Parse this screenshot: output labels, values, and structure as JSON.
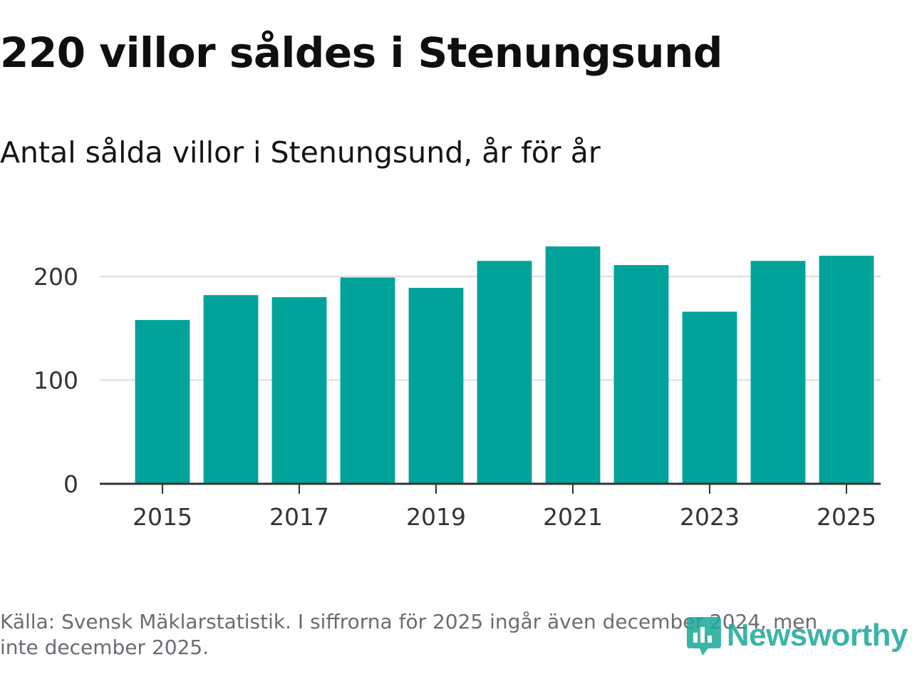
{
  "title": "220 villor såldes i Stenungsund",
  "subtitle": "Antal sålda villor i Stenungsund, år för år",
  "source": "Källa: Svensk Mäklarstatistik. I siffrorna för 2025 ingår även december 2024, men inte december 2025.",
  "logo": {
    "text": "Newsworthy",
    "icon": "newsworthy-logo-icon"
  },
  "colors": {
    "bar": "#00a39a",
    "grid": "#dddddd",
    "axis": "#333333",
    "logo": "#1aa89a"
  },
  "chart_data": {
    "type": "bar",
    "title": "",
    "xlabel": "",
    "ylabel": "",
    "categories": [
      "2015",
      "2016",
      "2017",
      "2018",
      "2019",
      "2020",
      "2021",
      "2022",
      "2023",
      "2024",
      "2025"
    ],
    "values": [
      158,
      182,
      180,
      199,
      189,
      215,
      229,
      211,
      166,
      215,
      220
    ],
    "ylim": [
      0,
      240
    ],
    "yticks": [
      0,
      100,
      200
    ],
    "ytick_labels": [
      "0",
      "100",
      "200"
    ],
    "xtick_labels": [
      "2015",
      "2017",
      "2019",
      "2021",
      "2023",
      "2025"
    ],
    "grid": "horizontal"
  }
}
